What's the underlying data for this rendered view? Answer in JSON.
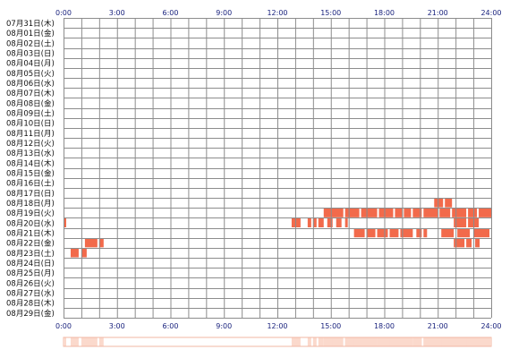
{
  "chart_data": {
    "type": "heatmap",
    "x_ticks": [
      "0:00",
      "3:00",
      "6:00",
      "9:00",
      "12:00",
      "15:00",
      "18:00",
      "21:00",
      "24:00"
    ],
    "x_range_hours": [
      0,
      24
    ],
    "rows": [
      "07月31日(木)",
      "08月01日(金)",
      "08月02日(土)",
      "08月03日(日)",
      "08月04日(月)",
      "08月05日(火)",
      "08月06日(水)",
      "08月07日(木)",
      "08月08日(金)",
      "08月09日(土)",
      "08月10日(日)",
      "08月11日(月)",
      "08月12日(火)",
      "08月13日(水)",
      "08月14日(木)",
      "08月15日(金)",
      "08月16日(土)",
      "08月17日(日)",
      "08月18日(月)",
      "08月19日(火)",
      "08月20日(水)",
      "08月21日(木)",
      "08月22日(金)",
      "08月23日(土)",
      "08月24日(日)",
      "08月25日(月)",
      "08月26日(火)",
      "08月27日(水)",
      "08月28日(木)",
      "08月29日(金)"
    ],
    "grid": true,
    "colors": {
      "activity": "#f26a4b",
      "grid": "#8c8c8c",
      "summary": "#fbd9cc"
    },
    "activity": [
      {
        "row": 18,
        "start": 20.8,
        "end": 21.3
      },
      {
        "row": 18,
        "start": 21.4,
        "end": 21.8
      },
      {
        "row": 19,
        "start": 14.6,
        "end": 15.7
      },
      {
        "row": 19,
        "start": 15.8,
        "end": 16.6
      },
      {
        "row": 19,
        "start": 16.7,
        "end": 17.6
      },
      {
        "row": 19,
        "start": 17.7,
        "end": 18.5
      },
      {
        "row": 19,
        "start": 18.6,
        "end": 19.0
      },
      {
        "row": 19,
        "start": 19.1,
        "end": 19.5
      },
      {
        "row": 19,
        "start": 19.6,
        "end": 20.1
      },
      {
        "row": 19,
        "start": 20.2,
        "end": 21.0
      },
      {
        "row": 19,
        "start": 21.1,
        "end": 21.7
      },
      {
        "row": 19,
        "start": 21.8,
        "end": 22.6
      },
      {
        "row": 19,
        "start": 22.7,
        "end": 23.2
      },
      {
        "row": 19,
        "start": 23.3,
        "end": 24.0
      },
      {
        "row": 20,
        "start": 0.0,
        "end": 0.15
      },
      {
        "row": 20,
        "start": 12.8,
        "end": 13.3
      },
      {
        "row": 20,
        "start": 13.7,
        "end": 13.9
      },
      {
        "row": 20,
        "start": 14.0,
        "end": 14.2
      },
      {
        "row": 20,
        "start": 14.3,
        "end": 14.6
      },
      {
        "row": 20,
        "start": 14.8,
        "end": 15.1
      },
      {
        "row": 20,
        "start": 15.3,
        "end": 15.6
      },
      {
        "row": 20,
        "start": 15.8,
        "end": 15.95
      },
      {
        "row": 20,
        "start": 21.9,
        "end": 22.6
      },
      {
        "row": 20,
        "start": 22.7,
        "end": 23.3
      },
      {
        "row": 21,
        "start": 16.3,
        "end": 16.9
      },
      {
        "row": 21,
        "start": 17.0,
        "end": 17.5
      },
      {
        "row": 21,
        "start": 17.6,
        "end": 18.2
      },
      {
        "row": 21,
        "start": 18.3,
        "end": 18.8
      },
      {
        "row": 21,
        "start": 18.9,
        "end": 19.6
      },
      {
        "row": 21,
        "start": 19.8,
        "end": 20.1
      },
      {
        "row": 21,
        "start": 20.2,
        "end": 20.4
      },
      {
        "row": 21,
        "start": 21.2,
        "end": 21.9
      },
      {
        "row": 21,
        "start": 22.1,
        "end": 22.8
      },
      {
        "row": 21,
        "start": 23.0,
        "end": 23.9
      },
      {
        "row": 22,
        "start": 1.2,
        "end": 1.9
      },
      {
        "row": 22,
        "start": 2.0,
        "end": 2.25
      },
      {
        "row": 22,
        "start": 21.9,
        "end": 22.5
      },
      {
        "row": 22,
        "start": 22.6,
        "end": 22.9
      },
      {
        "row": 22,
        "start": 23.1,
        "end": 23.35
      },
      {
        "row": 23,
        "start": 0.4,
        "end": 0.85
      },
      {
        "row": 23,
        "start": 1.0,
        "end": 1.3
      }
    ]
  }
}
